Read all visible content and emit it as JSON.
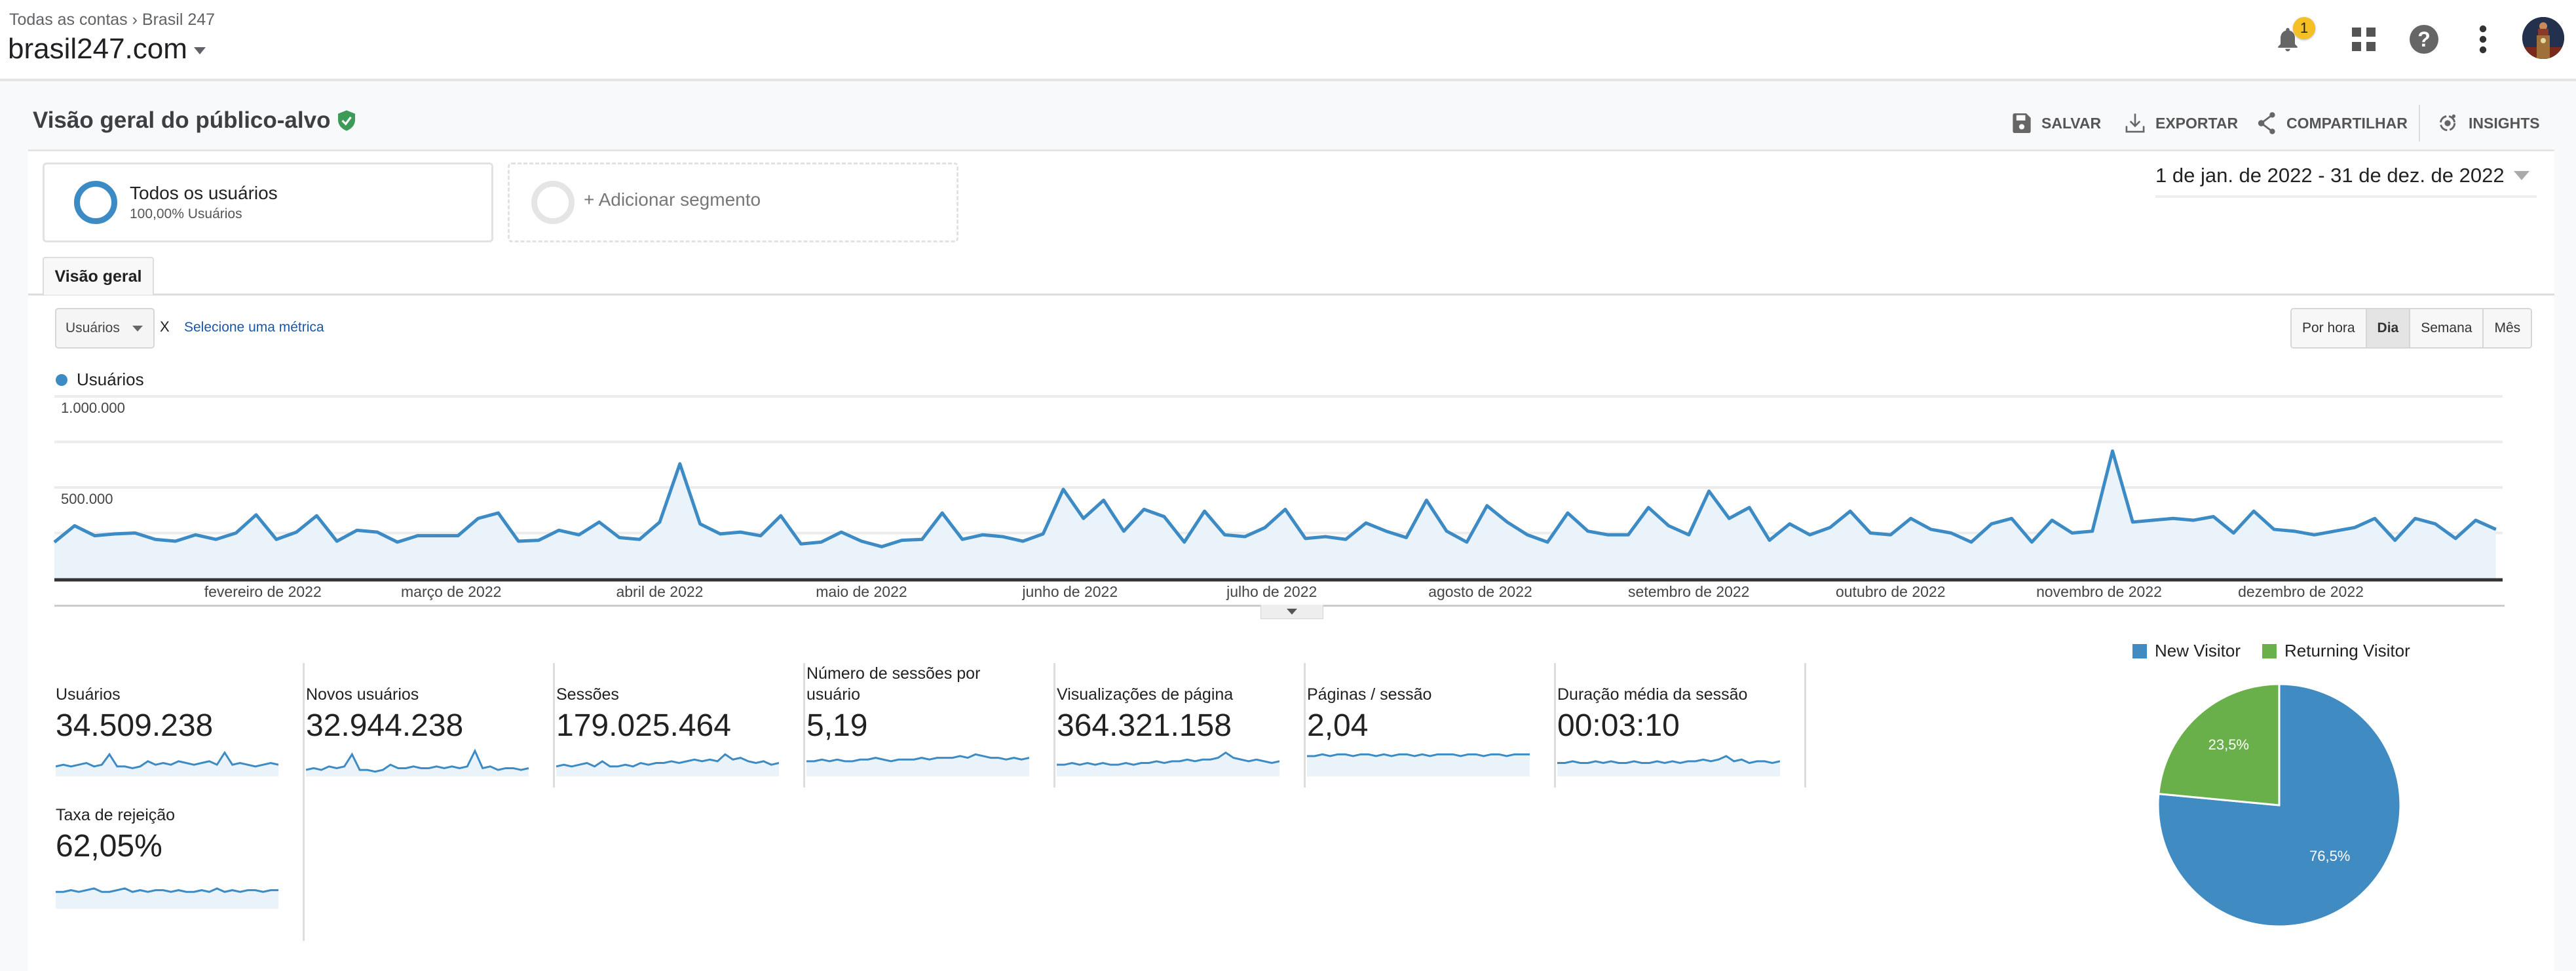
{
  "header": {
    "breadcrumb": [
      "Todas as contas",
      "Brasil 247"
    ],
    "breadcrumb_separator": "›",
    "property": "brasil247.com",
    "notification_count": "1",
    "icons": [
      "bell-icon",
      "apps-icon",
      "help-icon",
      "more-vert-icon",
      "avatar"
    ]
  },
  "page": {
    "title": "Visão geral do público-alvo",
    "toolbar": {
      "save": "SALVAR",
      "export": "EXPORTAR",
      "share": "COMPARTILHAR",
      "insights": "INSIGHTS"
    }
  },
  "segments": {
    "active": {
      "name": "Todos os usuários",
      "sub": "100,00% Usuários"
    },
    "add": "+ Adicionar segmento"
  },
  "date_range": "1 de jan. de 2022 - 31 de dez. de 2022",
  "tabs": [
    "Visão geral"
  ],
  "controls": {
    "metric": "Usuários",
    "remove": "X",
    "select_metric": "Selecione uma métrica",
    "granularity": [
      "Por hora",
      "Dia",
      "Semana",
      "Mês"
    ],
    "granularity_selected": "Dia"
  },
  "colors": {
    "accent": "#3d8bc4",
    "area": "#eaf2fa",
    "new_visitor": "#3f8bc2",
    "returning_visitor": "#6ab04a",
    "verified": "#3e9b57"
  },
  "chart_data": [
    {
      "type": "area",
      "title": "",
      "legend": "Usuários",
      "ylabel": "Usuários",
      "ylim": [
        0,
        1000000
      ],
      "y_gridlines": [
        0,
        250000,
        500000,
        750000,
        1000000
      ],
      "y_tick_labels": [
        {
          "value": 1000000,
          "label": "1.000.000"
        },
        {
          "value": 500000,
          "label": "500.000"
        }
      ],
      "x_unit": "day of year 2022",
      "x_ticks": [
        {
          "day": 31,
          "label": "fevereiro de 2022"
        },
        {
          "day": 59,
          "label": "março de 2022"
        },
        {
          "day": 90,
          "label": "abril de 2022"
        },
        {
          "day": 120,
          "label": "maio de 2022"
        },
        {
          "day": 151,
          "label": "junho de 2022"
        },
        {
          "day": 181,
          "label": "julho de 2022"
        },
        {
          "day": 212,
          "label": "agosto de 2022"
        },
        {
          "day": 243,
          "label": "setembro de 2022"
        },
        {
          "day": 273,
          "label": "outubro de 2022"
        },
        {
          "day": 304,
          "label": "novembro de 2022"
        },
        {
          "day": 334,
          "label": "dezembro de 2022"
        }
      ],
      "x_step_days": 3,
      "series": [
        {
          "name": "Usuários",
          "values_thousands": [
            200,
            290,
            235,
            245,
            250,
            215,
            205,
            240,
            215,
            250,
            350,
            215,
            255,
            345,
            205,
            265,
            255,
            200,
            235,
            235,
            235,
            330,
            360,
            205,
            210,
            265,
            240,
            310,
            225,
            215,
            310,
            630,
            300,
            245,
            255,
            235,
            345,
            190,
            200,
            255,
            205,
            175,
            210,
            215,
            360,
            215,
            240,
            230,
            205,
            245,
            490,
            330,
            430,
            260,
            380,
            340,
            200,
            370,
            240,
            230,
            280,
            380,
            220,
            230,
            215,
            305,
            260,
            225,
            430,
            260,
            200,
            400,
            310,
            240,
            200,
            360,
            260,
            240,
            240,
            390,
            290,
            240,
            480,
            330,
            390,
            210,
            300,
            240,
            280,
            370,
            250,
            240,
            330,
            270,
            250,
            200,
            300,
            330,
            200,
            320,
            250,
            260,
            700,
            310,
            320,
            330,
            320,
            340,
            250,
            370,
            270,
            260,
            240,
            260,
            280,
            330,
            210,
            330,
            300,
            220,
            320,
            270
          ]
        }
      ]
    },
    {
      "type": "pie",
      "legend_position": "top",
      "categories": [
        "New Visitor",
        "Returning Visitor"
      ],
      "values": [
        76.5,
        23.5
      ],
      "labels": [
        "76,5%",
        "23,5%"
      ]
    }
  ],
  "metrics": [
    {
      "label": "Usuários",
      "value": "34.509.238",
      "spark": [
        5,
        6,
        5,
        6,
        7,
        5,
        6,
        12,
        5,
        5,
        4,
        5,
        8,
        6,
        7,
        6,
        8,
        7,
        6,
        7,
        8,
        6,
        13,
        6,
        7,
        6,
        5,
        6,
        7,
        6
      ]
    },
    {
      "label": "Novos usuários",
      "value": "32.944.238",
      "spark": [
        3,
        4,
        3,
        5,
        4,
        5,
        12,
        3,
        3,
        2,
        3,
        6,
        4,
        4,
        5,
        4,
        4,
        5,
        4,
        5,
        4,
        5,
        14,
        4,
        5,
        3,
        4,
        4,
        3,
        4
      ]
    },
    {
      "label": "Sessões",
      "value": "179.025.464",
      "spark": [
        5,
        6,
        5,
        6,
        7,
        5,
        8,
        5,
        5,
        6,
        5,
        7,
        6,
        7,
        7,
        8,
        7,
        8,
        9,
        8,
        9,
        8,
        12,
        9,
        10,
        8,
        7,
        8,
        6,
        7
      ]
    },
    {
      "label": "Número de sessões por usuário",
      "value": "5,19",
      "spark": [
        8,
        8,
        9,
        8,
        9,
        8,
        8,
        9,
        9,
        10,
        9,
        8,
        9,
        9,
        9,
        10,
        9,
        10,
        10,
        10,
        11,
        10,
        12,
        11,
        10,
        10,
        9,
        10,
        9,
        10
      ]
    },
    {
      "label": "Visualizações de página",
      "value": "364.321.158",
      "spark": [
        6,
        6,
        7,
        6,
        7,
        6,
        7,
        6,
        6,
        7,
        6,
        7,
        7,
        8,
        7,
        8,
        8,
        9,
        8,
        9,
        9,
        10,
        13,
        10,
        9,
        8,
        9,
        8,
        7,
        8
      ]
    },
    {
      "label": "Páginas / sessão",
      "value": "2,04",
      "spark": [
        11,
        11,
        12,
        11,
        12,
        12,
        11,
        12,
        12,
        11,
        12,
        11,
        12,
        12,
        11,
        12,
        11,
        12,
        12,
        12,
        11,
        12,
        12,
        11,
        12,
        12,
        11,
        12,
        12,
        12
      ]
    },
    {
      "label": "Duração média da sessão",
      "value": "00:03:10",
      "spark": [
        7,
        7,
        8,
        7,
        7,
        8,
        7,
        8,
        7,
        7,
        8,
        7,
        7,
        8,
        7,
        8,
        7,
        8,
        8,
        9,
        8,
        9,
        11,
        8,
        9,
        7,
        8,
        8,
        7,
        8
      ]
    },
    {
      "label": "Taxa de rejeição",
      "value": "62,05%",
      "spark": [
        9,
        9,
        10,
        9,
        10,
        11,
        9,
        9,
        10,
        11,
        9,
        10,
        9,
        10,
        10,
        9,
        10,
        9,
        9,
        10,
        9,
        11,
        9,
        10,
        9,
        10,
        10,
        9,
        10,
        10
      ]
    }
  ]
}
